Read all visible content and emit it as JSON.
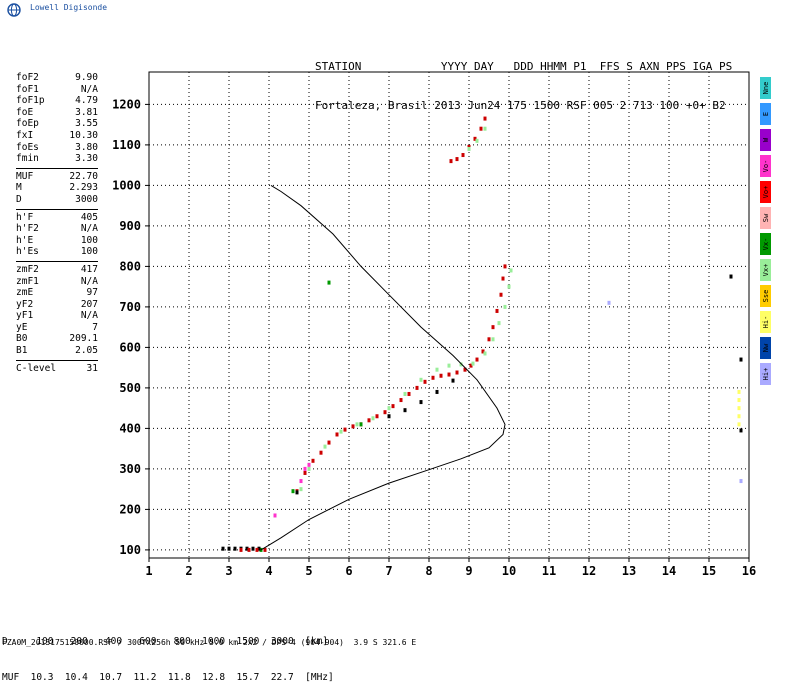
{
  "logo_text": "Lowell Digisonde",
  "header": {
    "line1": "STATION            YYYY DAY   DDD HHMM P1  FFS S AXN PPS IGA PS",
    "line2": "Fortaleza, Brasil 2013 Jun24 175 1500 RSF 005 2 713 100 +0+ B2"
  },
  "params": {
    "group1": [
      {
        "label": "foF2",
        "value": "9.90"
      },
      {
        "label": "foF1",
        "value": "N/A"
      },
      {
        "label": "foF1p",
        "value": "4.79"
      },
      {
        "label": "foE",
        "value": "3.81"
      },
      {
        "label": "foEp",
        "value": "3.55"
      },
      {
        "label": "fxI",
        "value": "10.30"
      },
      {
        "label": "foEs",
        "value": "3.80"
      },
      {
        "label": "fmin",
        "value": "3.30"
      }
    ],
    "group2": [
      {
        "label": "MUF",
        "value": "22.70"
      },
      {
        "label": "M",
        "value": "2.293"
      },
      {
        "label": "D",
        "value": "3000"
      }
    ],
    "group3": [
      {
        "label": "h'F",
        "value": "405"
      },
      {
        "label": "h'F2",
        "value": "N/A"
      },
      {
        "label": "h'E",
        "value": "100"
      },
      {
        "label": "h'Es",
        "value": "100"
      }
    ],
    "group4": [
      {
        "label": "zmF2",
        "value": "417"
      },
      {
        "label": "zmF1",
        "value": "N/A"
      },
      {
        "label": "zmE",
        "value": "97"
      },
      {
        "label": "yF2",
        "value": "207"
      },
      {
        "label": "yF1",
        "value": "N/A"
      },
      {
        "label": "yE",
        "value": "7"
      },
      {
        "label": "B0",
        "value": "209.1"
      },
      {
        "label": "B1",
        "value": "2.05"
      }
    ],
    "group5": [
      {
        "label": "C-level",
        "value": "31"
      }
    ]
  },
  "legend": [
    {
      "label": "Nne",
      "color": "#33cccc"
    },
    {
      "label": "E",
      "color": "#3399ff"
    },
    {
      "label": "W",
      "color": "#9900cc"
    },
    {
      "label": "Vo-",
      "color": "#ff33cc"
    },
    {
      "label": "Vo+",
      "color": "#ff0000"
    },
    {
      "label": "Sw",
      "color": "#ffb3b3"
    },
    {
      "label": "Vx-",
      "color": "#009900"
    },
    {
      "label": "Vx+",
      "color": "#99ee99"
    },
    {
      "label": "Sse",
      "color": "#ffcc00"
    },
    {
      "label": "Hi-",
      "color": "#ffff66"
    },
    {
      "label": "Nw",
      "color": "#0044aa"
    },
    {
      "label": "Hi+",
      "color": "#aaaaff"
    }
  ],
  "muf_table": {
    "d_row": "D     100   200   400   600   800  1000  1500  3000  [km]",
    "muf_row": "MUF  10.3  10.4  10.7  11.2  11.8  12.8  15.7  22.7  [MHz]"
  },
  "footer": "FZA0M_2013175150000.RSF / 300fx256h 50 kHz 5.0 km 2x2 / DPS-4 (904-904)  3.9 S 321.6 E",
  "chart_data": {
    "type": "scatter",
    "xlim": [
      1,
      16
    ],
    "ylim": [
      80,
      1280
    ],
    "x_ticks": [
      "1",
      "2",
      "3",
      "4",
      "5",
      "6",
      "7",
      "8",
      "9",
      "10",
      "11",
      "12",
      "13",
      "14",
      "15",
      "16"
    ],
    "y_ticks": [
      "100",
      "200",
      "300",
      "400",
      "500",
      "600",
      "700",
      "800",
      "900",
      "1000",
      "1100",
      "1200"
    ],
    "grid": true,
    "profile_color": "#000000",
    "profile": [
      [
        3.8,
        100
      ],
      [
        4.3,
        130
      ],
      [
        5.0,
        175
      ],
      [
        6.0,
        225
      ],
      [
        7.0,
        265
      ],
      [
        8.0,
        298
      ],
      [
        8.8,
        325
      ],
      [
        9.5,
        352
      ],
      [
        9.85,
        385
      ],
      [
        9.9,
        410
      ],
      [
        9.7,
        450
      ],
      [
        9.2,
        520
      ],
      [
        8.6,
        580
      ],
      [
        7.8,
        650
      ],
      [
        7.0,
        730
      ],
      [
        6.3,
        800
      ],
      [
        5.6,
        880
      ],
      [
        4.8,
        950
      ],
      [
        4.3,
        985
      ],
      [
        4.05,
        1000
      ]
    ],
    "series": [
      {
        "color": "#cc0000",
        "points": [
          [
            4.7,
            245
          ],
          [
            4.9,
            290
          ],
          [
            5.1,
            320
          ],
          [
            5.3,
            340
          ],
          [
            5.5,
            365
          ],
          [
            5.7,
            385
          ],
          [
            5.9,
            397
          ],
          [
            6.1,
            405
          ],
          [
            6.3,
            410
          ],
          [
            6.5,
            420
          ],
          [
            6.7,
            430
          ],
          [
            6.9,
            440
          ],
          [
            7.1,
            455
          ],
          [
            7.3,
            470
          ],
          [
            7.5,
            485
          ],
          [
            7.7,
            500
          ],
          [
            7.9,
            515
          ],
          [
            8.1,
            525
          ],
          [
            8.3,
            530
          ],
          [
            8.5,
            533
          ],
          [
            8.7,
            538
          ],
          [
            8.9,
            545
          ],
          [
            9.05,
            555
          ],
          [
            9.2,
            570
          ],
          [
            9.35,
            590
          ],
          [
            9.5,
            620
          ],
          [
            9.6,
            650
          ],
          [
            9.7,
            690
          ],
          [
            9.8,
            730
          ],
          [
            9.85,
            770
          ],
          [
            9.9,
            800
          ],
          [
            8.55,
            1060
          ],
          [
            8.7,
            1065
          ],
          [
            8.85,
            1075
          ],
          [
            9.0,
            1095
          ],
          [
            9.15,
            1115
          ],
          [
            9.3,
            1140
          ],
          [
            9.4,
            1165
          ]
        ]
      },
      {
        "color": "#99ee99",
        "points": [
          [
            4.8,
            250
          ],
          [
            5.0,
            300
          ],
          [
            5.4,
            355
          ],
          [
            5.8,
            392
          ],
          [
            6.2,
            410
          ],
          [
            6.6,
            425
          ],
          [
            7.0,
            450
          ],
          [
            7.4,
            485
          ],
          [
            7.8,
            520
          ],
          [
            8.2,
            545
          ],
          [
            8.5,
            555
          ],
          [
            8.8,
            558
          ],
          [
            9.1,
            560
          ],
          [
            9.4,
            585
          ],
          [
            9.6,
            620
          ],
          [
            9.75,
            660
          ],
          [
            9.9,
            700
          ],
          [
            10.0,
            750
          ],
          [
            10.05,
            790
          ],
          [
            9.0,
            1090
          ],
          [
            9.2,
            1110
          ],
          [
            9.4,
            1140
          ]
        ]
      },
      {
        "color": "#ff33cc",
        "points": [
          [
            4.8,
            270
          ],
          [
            4.9,
            300
          ],
          [
            5.0,
            310
          ],
          [
            4.15,
            185
          ]
        ]
      },
      {
        "color": "#009900",
        "points": [
          [
            4.6,
            245
          ],
          [
            5.5,
            760
          ],
          [
            3.8,
            100
          ],
          [
            6.3,
            410
          ]
        ]
      },
      {
        "color": "#000000",
        "points": [
          [
            2.85,
            103
          ],
          [
            3.0,
            103
          ],
          [
            3.15,
            103
          ],
          [
            3.3,
            103
          ],
          [
            3.45,
            103
          ],
          [
            3.6,
            103
          ],
          [
            3.75,
            103
          ],
          [
            4.7,
            242
          ],
          [
            7.0,
            430
          ],
          [
            7.4,
            445
          ],
          [
            7.8,
            465
          ],
          [
            8.2,
            490
          ],
          [
            8.6,
            518
          ],
          [
            15.55,
            775
          ],
          [
            15.8,
            570
          ],
          [
            15.8,
            395
          ]
        ]
      },
      {
        "color": "#cc0000",
        "points": [
          [
            3.3,
            100
          ],
          [
            3.5,
            100
          ],
          [
            3.7,
            100
          ],
          [
            3.9,
            100
          ]
        ]
      },
      {
        "color": "#ffff66",
        "points": [
          [
            15.75,
            410
          ],
          [
            15.75,
            430
          ],
          [
            15.75,
            450
          ],
          [
            15.75,
            470
          ],
          [
            15.75,
            490
          ]
        ]
      },
      {
        "color": "#aaaaff",
        "points": [
          [
            12.5,
            710
          ],
          [
            15.8,
            270
          ]
        ]
      }
    ]
  }
}
